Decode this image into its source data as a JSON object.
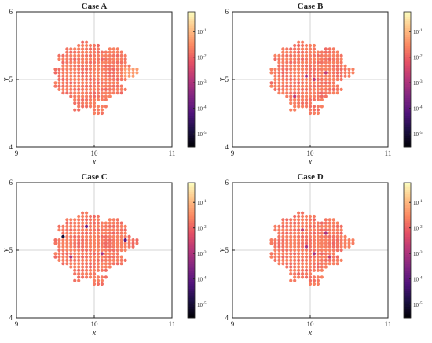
{
  "chart_data": [
    {
      "type": "scatter",
      "title": "Case A",
      "xlabel": "x",
      "ylabel": "y",
      "xlim": [
        9,
        11
      ],
      "ylim": [
        4,
        6
      ],
      "xticks": [
        "9",
        "10",
        "11"
      ],
      "yticks": [
        "4",
        "5",
        "6"
      ],
      "grid": "center crosshair lines at x=10, y=5",
      "colorbar": {
        "scale": "log",
        "colormap": "magma",
        "range": [
          3e-06,
          0.6
        ],
        "ticks": [
          "10^-1",
          "10^-2",
          "10^-3",
          "10^-4",
          "10^-5"
        ]
      },
      "points_layout": "square lattice, spacing 0.05, star-shaped cluster centered at (10,5)",
      "values_summary": "almost all points about 1e-2 to 3e-2 (pink-orange); brighter orange about 5e-2 near (10.45,5.1)",
      "highlights": []
    },
    {
      "type": "scatter",
      "title": "Case B",
      "xlabel": "x",
      "ylabel": "y",
      "xlim": [
        9,
        11
      ],
      "ylim": [
        4,
        6
      ],
      "xticks": [
        "9",
        "10",
        "11"
      ],
      "yticks": [
        "4",
        "5",
        "6"
      ],
      "grid": "center crosshair lines at x=10, y=5",
      "colorbar": {
        "scale": "log",
        "colormap": "magma",
        "range": [
          3e-06,
          0.6
        ],
        "ticks": [
          "10^-1",
          "10^-2",
          "10^-3",
          "10^-4",
          "10^-5"
        ]
      },
      "points_layout": "same lattice as Case A",
      "values_summary": "mostly about 1e-2 to 2e-2; some points near 2e-3",
      "highlights": [
        {
          "x": 9.95,
          "y": 5.05,
          "value": 0.001
        },
        {
          "x": 10.05,
          "y": 5.0,
          "value": 0.002
        },
        {
          "x": 9.8,
          "y": 4.75,
          "value": 0.002
        },
        {
          "x": 10.2,
          "y": 5.1,
          "value": 0.002
        }
      ]
    },
    {
      "type": "scatter",
      "title": "Case C",
      "xlabel": "x",
      "ylabel": "y",
      "xlim": [
        9,
        11
      ],
      "ylim": [
        4,
        6
      ],
      "xticks": [
        "9",
        "10",
        "11"
      ],
      "yticks": [
        "4",
        "5",
        "6"
      ],
      "grid": "center crosshair lines at x=10, y=5",
      "colorbar": {
        "scale": "log",
        "colormap": "magma",
        "range": [
          3e-06,
          0.6
        ],
        "ticks": [
          "10^-1",
          "10^-2",
          "10^-3",
          "10^-4",
          "10^-5"
        ]
      },
      "points_layout": "same lattice as Case A",
      "values_summary": "mostly about 1e-2 to 2e-2; a few dark outliers",
      "highlights": [
        {
          "x": 9.6,
          "y": 5.2,
          "value": 1e-05
        },
        {
          "x": 9.9,
          "y": 5.35,
          "value": 0.0002
        },
        {
          "x": 10.4,
          "y": 5.15,
          "value": 0.0001
        },
        {
          "x": 9.7,
          "y": 4.9,
          "value": 0.001
        },
        {
          "x": 10.1,
          "y": 4.95,
          "value": 0.001
        }
      ]
    },
    {
      "type": "scatter",
      "title": "Case D",
      "xlabel": "x",
      "ylabel": "y",
      "xlim": [
        9,
        11
      ],
      "ylim": [
        4,
        6
      ],
      "xticks": [
        "9",
        "10",
        "11"
      ],
      "yticks": [
        "4",
        "5",
        "6"
      ],
      "grid": "center crosshair lines at x=10, y=5",
      "colorbar": {
        "scale": "log",
        "colormap": "magma",
        "range": [
          3e-06,
          0.6
        ],
        "ticks": [
          "10^-1",
          "10^-2",
          "10^-3",
          "10^-4",
          "10^-5"
        ]
      },
      "points_layout": "same lattice as Case A",
      "values_summary": "mostly about 1e-2 to 2e-2; some points near 1e-3",
      "highlights": [
        {
          "x": 9.95,
          "y": 5.05,
          "value": 0.001
        },
        {
          "x": 10.05,
          "y": 4.95,
          "value": 0.001
        },
        {
          "x": 10.2,
          "y": 5.25,
          "value": 0.001
        },
        {
          "x": 9.9,
          "y": 5.3,
          "value": 0.002
        },
        {
          "x": 10.25,
          "y": 4.9,
          "value": 0.002
        }
      ]
    }
  ],
  "colors": {
    "axis": "#262626",
    "grid": "#c8c8c8",
    "background": "#ffffff"
  }
}
